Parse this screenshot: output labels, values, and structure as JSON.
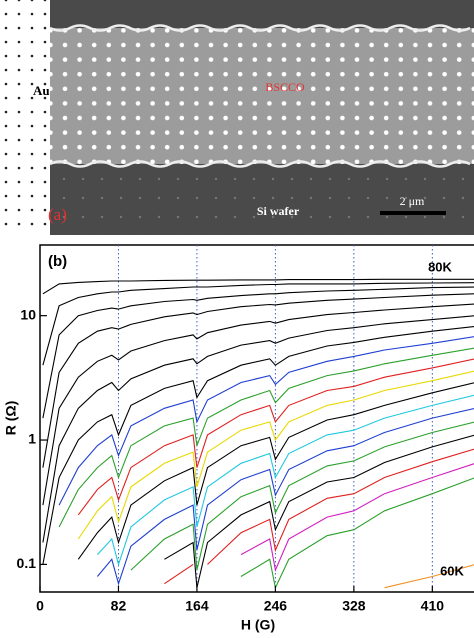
{
  "panel_a": {
    "label": "(a)",
    "texts": [
      "Au",
      "BSCCO",
      "2 μm",
      "Si wafer"
    ]
  },
  "chart_data": {
    "type": "line",
    "panel_label": "(b)",
    "xlabel": "H (G)",
    "ylabel": "R (Ω)",
    "annotations": [
      "80K",
      "60K"
    ],
    "yscale": "log",
    "xlim": [
      0,
      455
    ],
    "ylim": [
      0.06,
      37
    ],
    "xticks": [
      0,
      82,
      164,
      246,
      328,
      410
    ],
    "yticks": [
      0.1,
      1,
      10
    ],
    "grid_x": true,
    "x": [
      3,
      20,
      40,
      60,
      75,
      82,
      95,
      130,
      160,
      164,
      175,
      210,
      240,
      246,
      260,
      300,
      328,
      360,
      410,
      455
    ],
    "series": [
      {
        "color": "#000000",
        "values": [
          15,
          18,
          18.5,
          18.8,
          19,
          19,
          19,
          19.2,
          19.3,
          19.3,
          19.3,
          19.4,
          19.4,
          19.4,
          19.5,
          19.5,
          19.5,
          19.6,
          19.6,
          19.6
        ]
      },
      {
        "color": "#000000",
        "values": [
          4,
          12,
          14,
          15,
          15.5,
          15.5,
          16,
          16.5,
          17,
          17,
          17,
          17.5,
          17.8,
          17.8,
          18,
          18,
          18,
          18.2,
          18.3,
          18.4
        ]
      },
      {
        "color": "#000000",
        "values": [
          1.5,
          7,
          10,
          11,
          11.5,
          11.3,
          12,
          13,
          13.5,
          13.3,
          13.8,
          14.5,
          15,
          15,
          15.3,
          15.8,
          16,
          16.3,
          16.8,
          17
        ]
      },
      {
        "color": "#000000",
        "values": [
          0.6,
          3.5,
          6,
          7.5,
          8,
          7.8,
          8.5,
          9.8,
          10.5,
          10.2,
          10.8,
          11.8,
          12.3,
          12.2,
          12.6,
          13.3,
          13.6,
          14,
          14.6,
          15
        ]
      },
      {
        "color": "#000000",
        "values": [
          0.3,
          1.8,
          3.2,
          4.3,
          4.8,
          4.4,
          5.2,
          6.3,
          7,
          6.5,
          7.3,
          8.4,
          9,
          8.7,
          9.3,
          10.2,
          10.6,
          11.1,
          11.8,
          12.4
        ]
      },
      {
        "color": "#000000",
        "values": [
          0.15,
          0.9,
          1.8,
          2.5,
          2.9,
          2.5,
          3.1,
          4,
          4.5,
          4.1,
          4.7,
          5.8,
          6.3,
          6,
          6.6,
          7.6,
          8,
          8.6,
          9.3,
          10
        ]
      },
      {
        "color": "#000000",
        "values": [
          0.1,
          0.5,
          1,
          1.4,
          1.6,
          1.1,
          1.9,
          2.6,
          3,
          2.2,
          3,
          4,
          4.5,
          4,
          4.7,
          5.7,
          6.1,
          6.7,
          7.5,
          8.2
        ]
      },
      {
        "color": "#1f3fd0",
        "values": [
          null,
          0.3,
          0.6,
          0.9,
          1.1,
          0.75,
          1.3,
          1.8,
          2.1,
          1.4,
          2.1,
          2.9,
          3.3,
          2.8,
          3.5,
          4.3,
          4.7,
          5.3,
          6,
          6.8
        ]
      },
      {
        "color": "#2ca02c",
        "values": [
          null,
          0.2,
          0.4,
          0.6,
          0.75,
          0.5,
          0.9,
          1.3,
          1.5,
          0.9,
          1.5,
          2.1,
          2.5,
          2,
          2.6,
          3.3,
          3.6,
          4.1,
          4.8,
          5.5
        ]
      },
      {
        "color": "#e02020",
        "values": [
          null,
          null,
          0.25,
          0.4,
          0.5,
          0.33,
          0.6,
          0.9,
          1.1,
          0.6,
          1.1,
          1.6,
          1.9,
          1.4,
          1.9,
          2.5,
          2.7,
          3.2,
          3.8,
          4.5
        ]
      },
      {
        "color": "#e8d800",
        "values": [
          null,
          null,
          0.16,
          0.27,
          0.35,
          0.22,
          0.42,
          0.65,
          0.8,
          0.42,
          0.8,
          1.2,
          1.4,
          1,
          1.4,
          1.9,
          2.1,
          2.5,
          3,
          3.6
        ]
      },
      {
        "color": "#000000",
        "values": [
          null,
          null,
          0.11,
          0.18,
          0.24,
          0.15,
          0.3,
          0.47,
          0.6,
          0.3,
          0.6,
          0.9,
          1.05,
          0.7,
          1.05,
          1.45,
          1.6,
          1.9,
          2.4,
          2.9
        ]
      },
      {
        "color": "#20c8e0",
        "values": [
          null,
          null,
          null,
          0.12,
          0.16,
          0.1,
          0.2,
          0.33,
          0.42,
          0.2,
          0.42,
          0.65,
          0.78,
          0.5,
          0.78,
          1.1,
          1.2,
          1.5,
          1.9,
          2.3
        ]
      },
      {
        "color": "#1f3fd0",
        "values": [
          null,
          null,
          null,
          0.08,
          0.11,
          0.07,
          0.14,
          0.23,
          0.3,
          0.13,
          0.3,
          0.48,
          0.58,
          0.36,
          0.58,
          0.82,
          0.9,
          1.15,
          1.5,
          1.8
        ]
      },
      {
        "color": "#2ca02c",
        "values": [
          null,
          null,
          null,
          null,
          0.075,
          null,
          0.09,
          0.16,
          0.21,
          0.09,
          0.21,
          0.35,
          0.43,
          0.26,
          0.43,
          0.62,
          0.68,
          0.88,
          1.15,
          1.4
        ]
      },
      {
        "color": "#000000",
        "values": [
          null,
          null,
          null,
          null,
          null,
          null,
          null,
          0.11,
          0.15,
          0.065,
          0.15,
          0.25,
          0.32,
          0.19,
          0.32,
          0.46,
          0.5,
          0.66,
          0.88,
          1.1
        ]
      },
      {
        "color": "#e02020",
        "values": [
          null,
          null,
          null,
          null,
          null,
          null,
          null,
          0.07,
          0.1,
          null,
          0.1,
          0.18,
          0.23,
          0.13,
          0.23,
          0.34,
          0.37,
          0.5,
          0.67,
          0.85
        ]
      },
      {
        "color": "#d020c0",
        "values": [
          null,
          null,
          null,
          null,
          null,
          null,
          null,
          null,
          null,
          null,
          null,
          0.12,
          0.16,
          0.09,
          0.16,
          0.24,
          0.27,
          0.37,
          0.5,
          0.65
        ]
      },
      {
        "color": "#2ca02c",
        "values": [
          null,
          null,
          null,
          null,
          null,
          null,
          null,
          null,
          null,
          null,
          null,
          0.08,
          0.11,
          0.065,
          0.11,
          0.17,
          0.19,
          0.27,
          0.37,
          0.5
        ]
      },
      {
        "color": "#f09020",
        "values": [
          null,
          null,
          null,
          null,
          null,
          null,
          null,
          null,
          null,
          null,
          null,
          null,
          null,
          null,
          null,
          null,
          null,
          0.065,
          0.08,
          0.1
        ]
      }
    ]
  }
}
